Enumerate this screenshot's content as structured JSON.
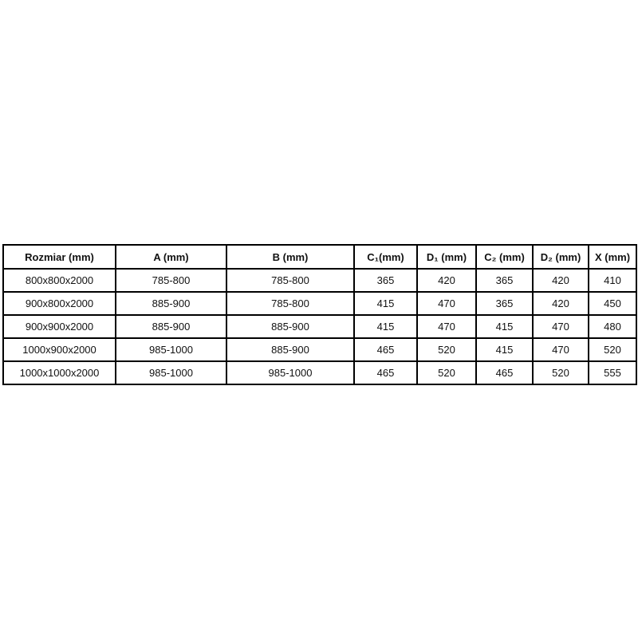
{
  "page": {
    "background_color": "#ffffff",
    "text_color": "#111111",
    "border_color": "#000000"
  },
  "chart_data": {
    "type": "table",
    "title": "",
    "columns": [
      "Rozmiar (mm)",
      "A (mm)",
      "B (mm)",
      "C₁(mm)",
      "D₁ (mm)",
      "C₂ (mm)",
      "D₂ (mm)",
      "X (mm)"
    ],
    "rows": [
      [
        "800x800x2000",
        "785-800",
        "785-800",
        "365",
        "420",
        "365",
        "420",
        "410"
      ],
      [
        "900x800x2000",
        "885-900",
        "785-800",
        "415",
        "470",
        "365",
        "420",
        "450"
      ],
      [
        "900x900x2000",
        "885-900",
        "885-900",
        "415",
        "470",
        "415",
        "470",
        "480"
      ],
      [
        "1000x900x2000",
        "985-1000",
        "885-900",
        "465",
        "520",
        "415",
        "470",
        "520"
      ],
      [
        "1000x1000x2000",
        "985-1000",
        "985-1000",
        "465",
        "520",
        "465",
        "520",
        "555"
      ]
    ],
    "layout_hints": {
      "grid": "all-borders",
      "header_style": "bold",
      "cell_alignment": "center",
      "striping": "none"
    }
  }
}
